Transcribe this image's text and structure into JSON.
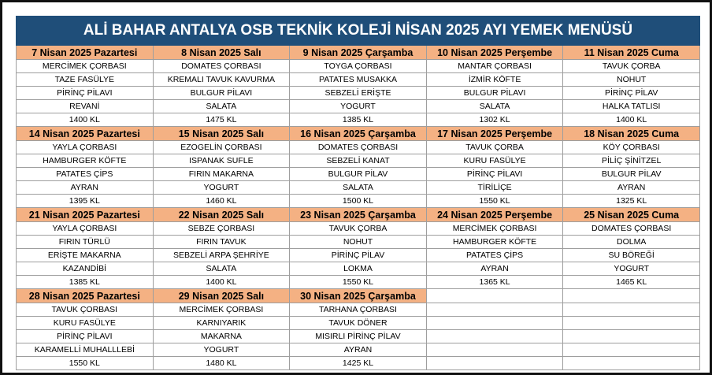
{
  "title": "ALİ BAHAR ANTALYA OSB TEKNİK KOLEJİ NİSAN 2025 AYI YEMEK MENÜSÜ",
  "colors": {
    "title_bg": "#1f4e79",
    "title_text": "#ffffff",
    "date_bg": "#f4b183",
    "border": "#9e9e9e"
  },
  "weeks": [
    {
      "days": [
        {
          "date": "7 Nisan 2025 Pazartesi",
          "items": [
            "MERCİMEK ÇORBASI",
            "TAZE FASÜLYE",
            "PİRİNÇ PİLAVI",
            "REVANİ",
            "1400 KL"
          ]
        },
        {
          "date": "8 Nisan 2025 Salı",
          "items": [
            "DOMATES ÇORBASI",
            "KREMALI TAVUK KAVURMA",
            "BULGUR PİLAVI",
            "SALATA",
            "1475 KL"
          ]
        },
        {
          "date": "9 Nisan 2025 Çarşamba",
          "items": [
            "TOYGA ÇORBASI",
            "PATATES MUSAKKA",
            "SEBZELİ ERİŞTE",
            "YOGURT",
            "1385 KL"
          ]
        },
        {
          "date": "10 Nisan 2025 Perşembe",
          "items": [
            "MANTAR ÇORBASI",
            "İZMİR KÖFTE",
            "BULGUR PİLAVI",
            "SALATA",
            "1302 KL"
          ]
        },
        {
          "date": "11 Nisan 2025 Cuma",
          "items": [
            "TAVUK ÇORBA",
            "NOHUT",
            "PİRİNÇ PİLAV",
            "HALKA TATLISI",
            "1400 KL"
          ]
        }
      ]
    },
    {
      "days": [
        {
          "date": "14 Nisan 2025 Pazartesi",
          "items": [
            "YAYLA ÇORBASI",
            "HAMBURGER KÖFTE",
            "PATATES ÇİPS",
            "AYRAN",
            "1395 KL"
          ]
        },
        {
          "date": "15 Nisan 2025 Salı",
          "items": [
            "EZOGELİN ÇORBASI",
            "ISPANAK SUFLE",
            "FIRIN MAKARNA",
            "YOGURT",
            "1460 KL"
          ]
        },
        {
          "date": "16 Nisan 2025 Çarşamba",
          "items": [
            "DOMATES ÇORBASI",
            "SEBZELİ KANAT",
            "BULGUR PİLAV",
            "SALATA",
            "1500 KL"
          ]
        },
        {
          "date": "17 Nisan 2025 Perşembe",
          "items": [
            "TAVUK ÇORBA",
            "KURU  FASÜLYE",
            "PİRİNÇ PİLAVI",
            "TİRİLİÇE",
            "1550 KL"
          ]
        },
        {
          "date": "18 Nisan 2025 Cuma",
          "items": [
            "KÖY ÇORBASI",
            "PİLİÇ ŞİNİTZEL",
            "BULGUR PİLAV",
            "AYRAN",
            "1325 KL"
          ]
        }
      ]
    },
    {
      "days": [
        {
          "date": "21 Nisan 2025 Pazartesi",
          "items": [
            "YAYLA ÇORBASI",
            "FIRIN TÜRLÜ",
            "ERİŞTE MAKARNA",
            "KAZANDİBİ",
            "1385 KL"
          ]
        },
        {
          "date": "22 Nisan 2025 Salı",
          "items": [
            "SEBZE ÇORBASI",
            "FIRIN TAVUK",
            "SEBZELİ ARPA ŞEHRİYE",
            "SALATA",
            "1400 KL"
          ]
        },
        {
          "date": "23 Nisan 2025 Çarşamba",
          "items": [
            "TAVUK ÇORBA",
            "NOHUT",
            "PİRİNÇ PİLAV",
            "LOKMA",
            "1550 KL"
          ]
        },
        {
          "date": "24 Nisan 2025 Perşembe",
          "items": [
            "MERCİMEK ÇORBASI",
            "HAMBURGER KÖFTE",
            "PATATES ÇİPS",
            "AYRAN",
            "1365 KL"
          ]
        },
        {
          "date": "25 Nisan 2025 Cuma",
          "items": [
            "DOMATES ÇORBASI",
            "DOLMA",
            "SU BÖREĞİ",
            "YOGURT",
            "1465 KL"
          ]
        }
      ]
    },
    {
      "days": [
        {
          "date": "28 Nisan 2025 Pazartesi",
          "items": [
            "TAVUK ÇORBASI",
            "KURU FASÜLYE",
            "PİRİNÇ PİLAVI",
            "KARAMELLİ MUHALLLEBİ",
            "1550 KL"
          ]
        },
        {
          "date": "29 Nisan 2025 Salı",
          "items": [
            "MERCİMEK ÇORBASI",
            "KARNIYARIK",
            "MAKARNA",
            "YOGURT",
            "1480 KL"
          ]
        },
        {
          "date": "30 Nisan 2025 Çarşamba",
          "items": [
            "TARHANA ÇORBASI",
            "TAVUK DÖNER",
            "MISIRLI PİRİNÇ PİLAV",
            "AYRAN",
            "1425 KL"
          ]
        },
        null,
        null
      ]
    }
  ]
}
